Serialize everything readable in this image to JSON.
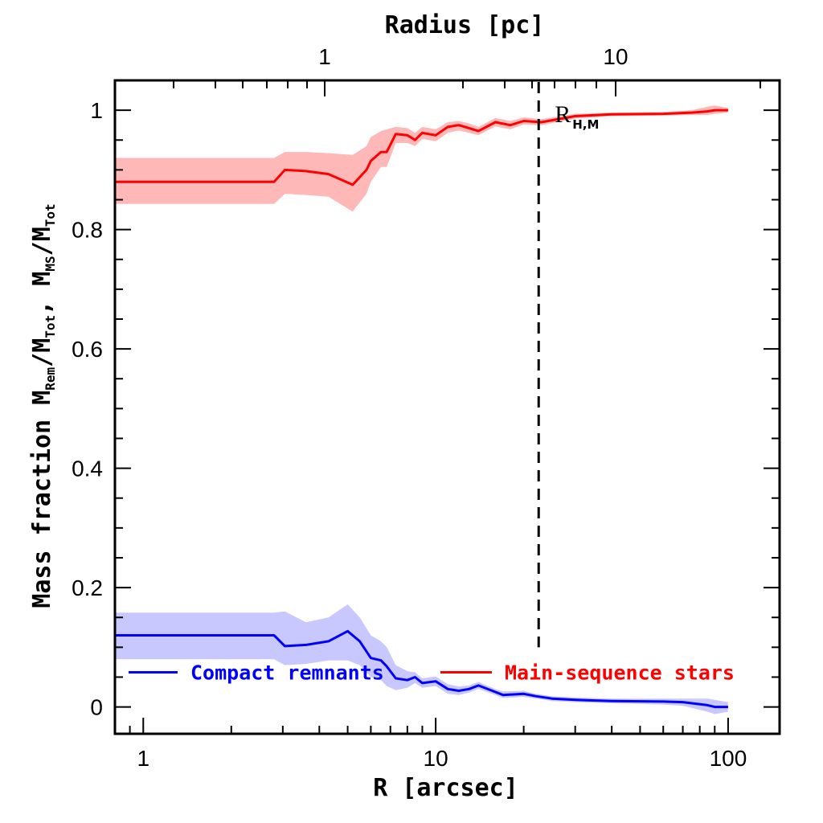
{
  "chart_data": {
    "type": "line",
    "xscale": "log",
    "xlabel": "R [arcsec]",
    "xlim": [
      0.8,
      150
    ],
    "xticks": [
      "1",
      "10",
      "100"
    ],
    "top_xlabel": "Radius [pc]",
    "top_xticks": [
      "1",
      "10"
    ],
    "ylim": [
      -0.045,
      1.05
    ],
    "yticks": [
      "0",
      "0.2",
      "0.4",
      "0.6",
      "0.8",
      "1"
    ],
    "ylabel": {
      "parts": [
        "Mass fraction  M",
        "Rem",
        "/M",
        "Tot",
        ",  M",
        "MS",
        "/M",
        "Tot"
      ],
      "subscript_flags": [
        false,
        true,
        false,
        true,
        false,
        true,
        false,
        true
      ]
    },
    "grid": false,
    "legend_placement": "bottom",
    "annotation": {
      "main": "R",
      "sub": "H,M",
      "x": 22.5
    },
    "series": [
      {
        "name": "Main-sequence stars",
        "color": "#ff0000",
        "band_color": "#ffb8b8",
        "x": [
          0.8,
          2.8,
          3.05,
          3.6,
          4.3,
          5.2,
          5.8,
          6.0,
          6.5,
          6.8,
          7.3,
          8.0,
          8.5,
          9.0,
          10.0,
          11.0,
          12.0,
          13.0,
          14.0,
          16.0,
          18.0,
          20.0,
          23.0,
          30.0,
          40.0,
          60.0,
          75.0,
          85.0,
          90.0,
          100.0
        ],
        "y": [
          0.88,
          0.88,
          0.9,
          0.898,
          0.893,
          0.875,
          0.9,
          0.915,
          0.93,
          0.93,
          0.96,
          0.958,
          0.95,
          0.962,
          0.958,
          0.972,
          0.975,
          0.97,
          0.965,
          0.98,
          0.975,
          0.982,
          0.98,
          0.99,
          0.993,
          0.994,
          0.996,
          0.998,
          1.0,
          1.0
        ],
        "lower": [
          0.843,
          0.843,
          0.86,
          0.858,
          0.855,
          0.83,
          0.86,
          0.88,
          0.905,
          0.905,
          0.945,
          0.945,
          0.94,
          0.952,
          0.948,
          0.962,
          0.966,
          0.962,
          0.958,
          0.973,
          0.968,
          0.976,
          0.975,
          0.986,
          0.99,
          0.991,
          0.992,
          0.992,
          0.994,
          0.996
        ],
        "upper": [
          0.92,
          0.92,
          0.93,
          0.93,
          0.928,
          0.925,
          0.94,
          0.955,
          0.965,
          0.968,
          0.972,
          0.97,
          0.962,
          0.972,
          0.968,
          0.98,
          0.982,
          0.978,
          0.972,
          0.987,
          0.982,
          0.988,
          0.985,
          0.994,
          0.996,
          0.997,
          1.0,
          1.006,
          1.008,
          1.004
        ]
      },
      {
        "name": "Compact remnants",
        "color": "#0000ff",
        "band_color": "#c8c8ff",
        "x": [
          0.8,
          2.8,
          3.05,
          3.6,
          4.3,
          5.0,
          5.5,
          6.0,
          6.5,
          6.8,
          7.3,
          8.0,
          8.5,
          9.0,
          10.0,
          11.0,
          12.0,
          13.0,
          14.0,
          16.0,
          17.0,
          20.0,
          22.0,
          25.0,
          30.0,
          40.0,
          60.0,
          70.0,
          85.0,
          90.0,
          100.0
        ],
        "y": [
          0.12,
          0.12,
          0.102,
          0.104,
          0.11,
          0.127,
          0.11,
          0.082,
          0.078,
          0.068,
          0.048,
          0.045,
          0.05,
          0.04,
          0.043,
          0.03,
          0.027,
          0.03,
          0.036,
          0.025,
          0.02,
          0.022,
          0.018,
          0.014,
          0.012,
          0.01,
          0.009,
          0.008,
          0.003,
          0.0,
          0.0
        ],
        "lower": [
          0.08,
          0.08,
          0.07,
          0.072,
          0.078,
          0.078,
          0.07,
          0.05,
          0.045,
          0.035,
          0.028,
          0.032,
          0.04,
          0.032,
          0.035,
          0.022,
          0.02,
          0.024,
          0.03,
          0.02,
          0.015,
          0.017,
          0.014,
          0.01,
          0.008,
          0.006,
          0.004,
          0.002,
          -0.008,
          -0.012,
          -0.008
        ],
        "upper": [
          0.158,
          0.158,
          0.16,
          0.142,
          0.15,
          0.172,
          0.15,
          0.12,
          0.11,
          0.1,
          0.07,
          0.06,
          0.058,
          0.048,
          0.051,
          0.038,
          0.034,
          0.036,
          0.042,
          0.03,
          0.026,
          0.027,
          0.022,
          0.018,
          0.016,
          0.014,
          0.014,
          0.014,
          0.014,
          0.012,
          0.008
        ]
      }
    ],
    "legend": [
      {
        "label": "Compact remnants",
        "color": "#0000ff"
      },
      {
        "label": "Main-sequence stars",
        "color": "#ff0000"
      }
    ]
  }
}
